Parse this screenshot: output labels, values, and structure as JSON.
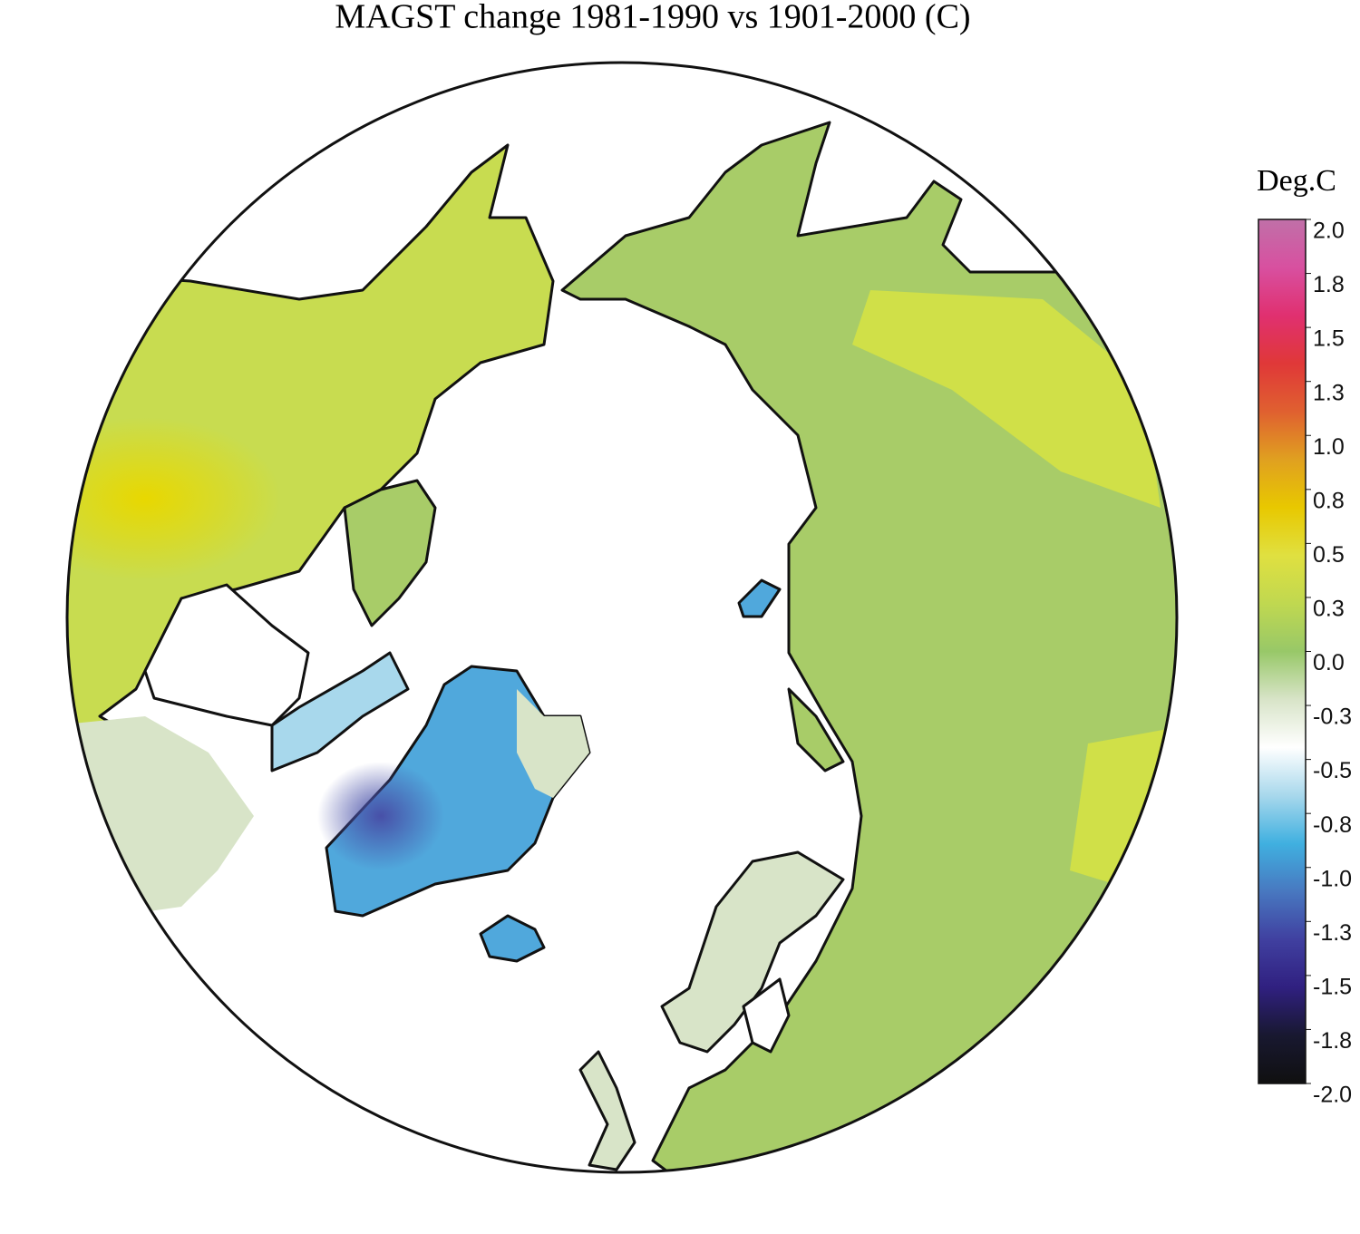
{
  "title": "MAGST change 1981-1990 vs 1901-2000 (C)",
  "colorbar": {
    "label": "Deg.C",
    "ticks": [
      {
        "value": 2,
        "label": "2.0"
      },
      {
        "value": 1.75,
        "label": "1.8"
      },
      {
        "value": 1.5,
        "label": "1.5"
      },
      {
        "value": 1.25,
        "label": "1.3"
      },
      {
        "value": 1,
        "label": "1.0"
      },
      {
        "value": 0.75,
        "label": "0.8"
      },
      {
        "value": 0.5,
        "label": "0.5"
      },
      {
        "value": 0.25,
        "label": "0.3"
      },
      {
        "value": 0,
        "label": "0.0"
      },
      {
        "value": -0.25,
        "label": "-0.3"
      },
      {
        "value": -0.5,
        "label": "-0.5"
      },
      {
        "value": -0.75,
        "label": "-0.8"
      },
      {
        "value": -1,
        "label": "-1.0"
      },
      {
        "value": -1.25,
        "label": "-1.3"
      },
      {
        "value": -1.5,
        "label": "-1.5"
      },
      {
        "value": -1.75,
        "label": "-1.8"
      },
      {
        "value": -2,
        "label": "-2.0"
      }
    ],
    "colors": [
      "#c070a8",
      "#d850a0",
      "#e03070",
      "#e03838",
      "#e06030",
      "#e0a020",
      "#e8c800",
      "#e0e040",
      "#c0d850",
      "#98c868",
      "#d8e4c8",
      "#ffffff",
      "#a8d8ec",
      "#40b0e0",
      "#4878c0",
      "#4040a0",
      "#302080",
      "#181830",
      "#101010"
    ],
    "range": [
      -2,
      2
    ]
  }
}
